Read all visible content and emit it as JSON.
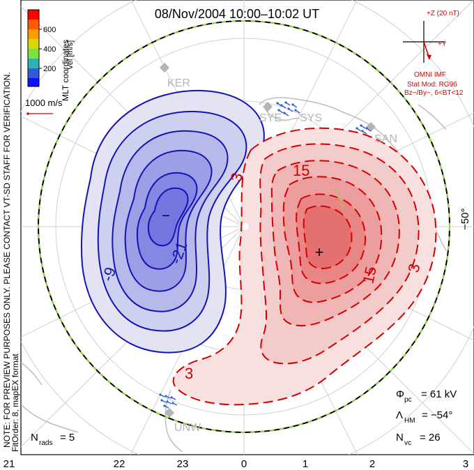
{
  "title": "08/Nov/2004 10:00–10:02 UT",
  "colorbar": {
    "label": "Vel [m/s]",
    "ticks": [
      "600",
      "400",
      "200"
    ],
    "colors": [
      "#ff0000",
      "#ff9a00",
      "#d8d800",
      "#7de23a",
      "#2fb2b2",
      "#2b5fd6",
      "#1010ff"
    ]
  },
  "side_text": {
    "coords": "MLT coordinates",
    "notice": "NOTE: FOR PREVIEW PURPOSES ONLY. PLEASE CONTACT VT-SD STAFF FOR VERIFICATION.",
    "fit": "FitOrder: 8, mapEX format"
  },
  "scale": {
    "label": "1000 m/s"
  },
  "imf": {
    "z_label": "+Z (20 nT)",
    "y_label": "+Y",
    "source": "OMNI IMF",
    "model": "Stat Mod: RG96",
    "condition": "Bz−/By−, 6<BT<12"
  },
  "stations": [
    "KER",
    "SYE",
    "SYS",
    "SAN",
    "UNW"
  ],
  "contours": {
    "neg_labels": [
      "-21",
      "-9"
    ],
    "pos_labels": [
      "3",
      "15",
      "15",
      "3",
      "3"
    ],
    "min_marker": "−",
    "max_marker": "+"
  },
  "lat_label": "−50°",
  "stats": {
    "phi_sym": "Φ",
    "phi_sub": "pc",
    "phi_val": "= 61 kV",
    "lam_sym": "Λ",
    "lam_sub": "HM",
    "lam_val": "= −54°",
    "nvc_sym": "N",
    "nvc_sub": "vc",
    "nvc_val": "= 26",
    "nrad_sym": "N",
    "nrad_sub": "rads",
    "nrad_val": "= 5"
  },
  "mlt_ticks": [
    "21",
    "22",
    "23",
    "0",
    "1",
    "2",
    "3"
  ]
}
